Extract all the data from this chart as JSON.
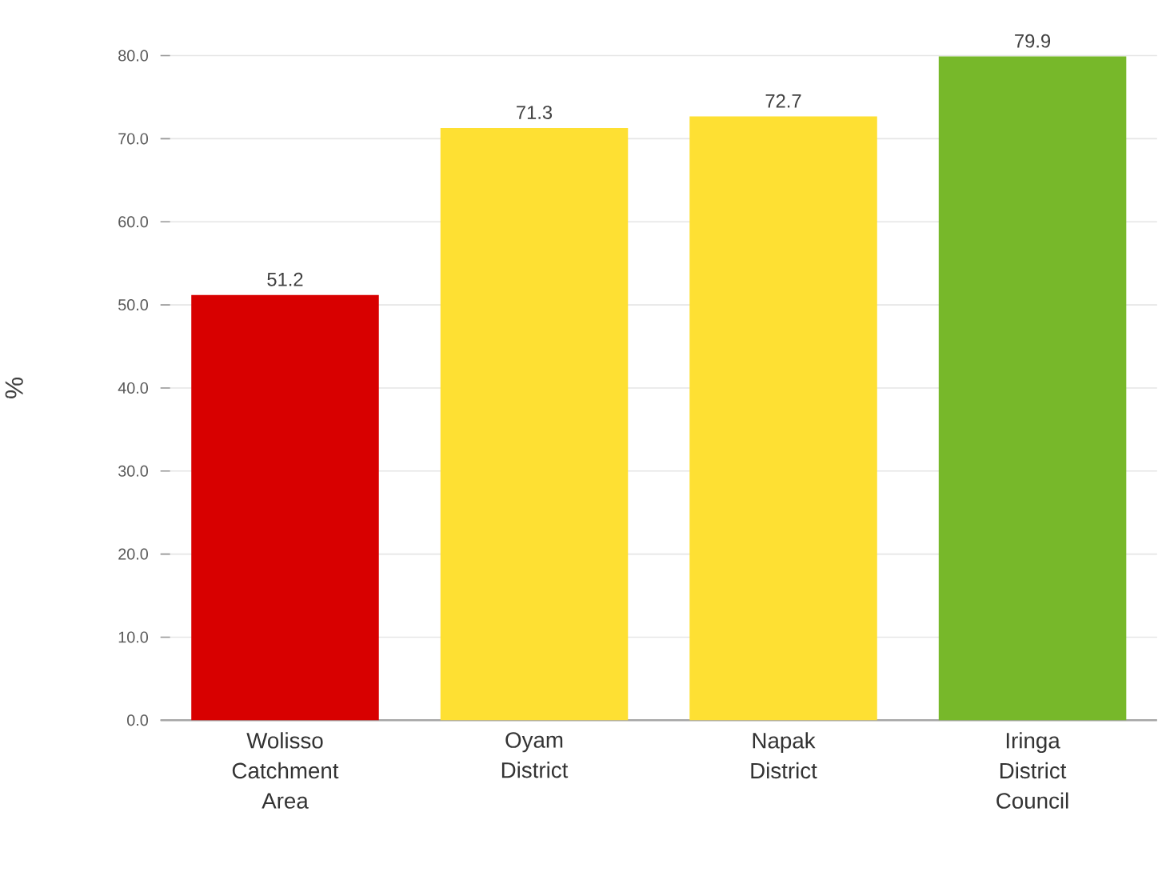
{
  "chart_data": {
    "type": "bar",
    "ylabel": "%",
    "categories": [
      "Wolisso Catchment Area",
      "Oyam District",
      "Napak District",
      "Iringa District Council"
    ],
    "values": [
      51.2,
      71.3,
      72.7,
      79.9
    ],
    "colors": [
      "#d80000",
      "#fee033",
      "#fee033",
      "#77b82a"
    ],
    "ylim": [
      0,
      80
    ],
    "yticks": [
      {
        "value": 0,
        "label": "0.0"
      },
      {
        "value": 10,
        "label": "10.0"
      },
      {
        "value": 20,
        "label": "20.0"
      },
      {
        "value": 30,
        "label": "30.0"
      },
      {
        "value": 40,
        "label": "40.0"
      },
      {
        "value": 50,
        "label": "50.0"
      },
      {
        "value": 60,
        "label": "60.0"
      },
      {
        "value": 70,
        "label": "70.0"
      },
      {
        "value": 80,
        "label": "80.0"
      }
    ],
    "grid": "y",
    "data_labels": true
  }
}
